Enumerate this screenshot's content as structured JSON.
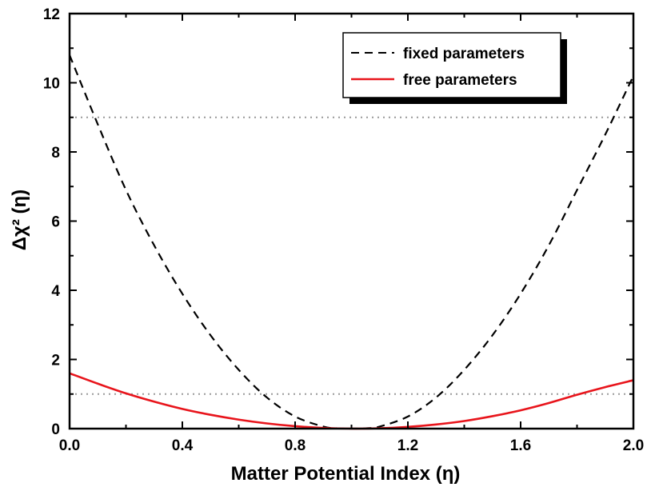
{
  "chart_data": {
    "type": "line",
    "title": "",
    "xlabel": "Matter Potential Index (η)",
    "ylabel": "Δχ² (η)",
    "xlim": [
      0.0,
      2.0
    ],
    "ylim": [
      0,
      12
    ],
    "xticks": [
      "0.0",
      "0.4",
      "0.8",
      "1.2",
      "1.6",
      "2.0"
    ],
    "yticks": [
      "0",
      "2",
      "4",
      "6",
      "8",
      "10",
      "12"
    ],
    "grid": false,
    "legend_position": "top-right",
    "reference_lines": [
      {
        "y": 1,
        "style": "dotted",
        "color": "#999999"
      },
      {
        "y": 9,
        "style": "dotted",
        "color": "#999999"
      }
    ],
    "series": [
      {
        "name": "fixed parameters",
        "color": "#000000",
        "style": "dashed",
        "x": [
          0.0,
          0.1,
          0.2,
          0.3,
          0.4,
          0.5,
          0.6,
          0.7,
          0.8,
          0.9,
          0.95,
          1.0,
          1.05,
          1.1,
          1.2,
          1.3,
          1.4,
          1.5,
          1.6,
          1.7,
          1.8,
          1.9,
          2.0
        ],
        "y": [
          10.8,
          8.8,
          6.9,
          5.3,
          3.9,
          2.7,
          1.7,
          0.9,
          0.35,
          0.06,
          0.01,
          0.0,
          0.01,
          0.06,
          0.35,
          0.9,
          1.7,
          2.7,
          3.9,
          5.3,
          6.9,
          8.5,
          10.2
        ]
      },
      {
        "name": "free parameters",
        "color": "#e8141b",
        "style": "solid",
        "x": [
          0.0,
          0.1,
          0.2,
          0.3,
          0.4,
          0.5,
          0.6,
          0.7,
          0.8,
          0.9,
          1.0,
          1.1,
          1.2,
          1.3,
          1.4,
          1.5,
          1.6,
          1.7,
          1.8,
          1.9,
          2.0
        ],
        "y": [
          1.6,
          1.3,
          1.02,
          0.78,
          0.57,
          0.4,
          0.26,
          0.15,
          0.07,
          0.02,
          0.0,
          0.01,
          0.05,
          0.12,
          0.22,
          0.36,
          0.53,
          0.74,
          0.98,
          1.2,
          1.4
        ]
      }
    ]
  }
}
